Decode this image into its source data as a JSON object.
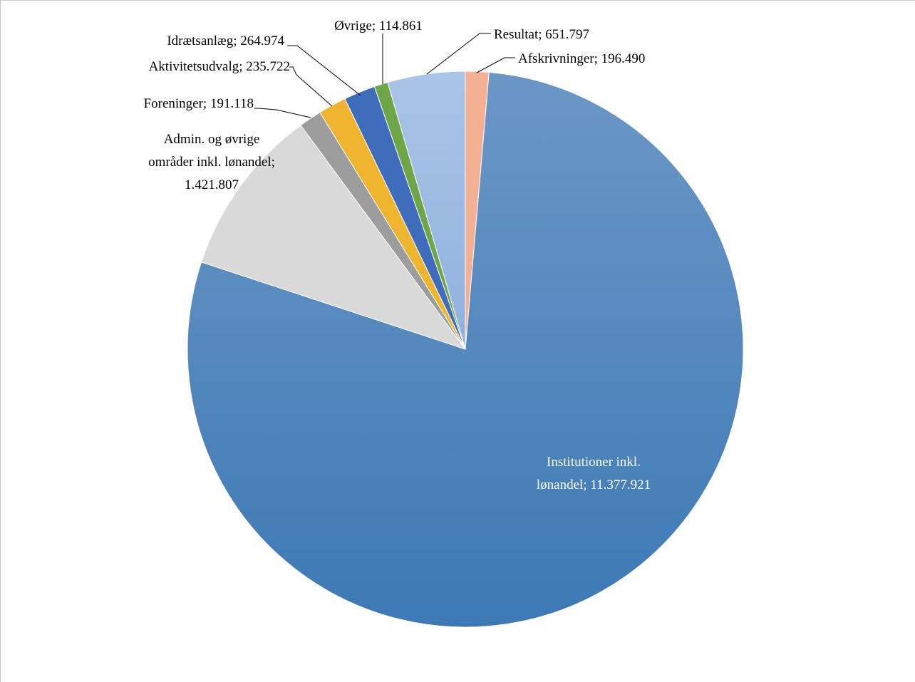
{
  "chart_data": {
    "type": "pie",
    "title": "",
    "start": "12 o'clock",
    "direction": "clockwise",
    "legend": "none",
    "data_labels": "category; value",
    "slices": [
      {
        "name": "Afskrivninger",
        "label": "Afskrivninger; 196.490",
        "value": 196490,
        "color": "#f4b093"
      },
      {
        "name": "Institutioner inkl. lønandel",
        "label_lines": [
          "Institutioner inkl.",
          "lønandel; 11.377.921"
        ],
        "value": 11377921,
        "color": "#4a86c4",
        "color_light": "#6b97c6",
        "color_dark": "#3d79b5"
      },
      {
        "name": "Admin. og øvrige områder inkl. lønandel",
        "label_lines": [
          "Admin. og øvrige",
          "områder inkl. lønandel;",
          "1.421.807"
        ],
        "value": 1421807,
        "color": "#d9d9d9"
      },
      {
        "name": "Foreninger",
        "label": "Foreninger; 191.118",
        "value": 191118,
        "color": "#9d9d9d"
      },
      {
        "name": "Aktivitetsudvalg",
        "label": "Aktivitetsudvalg; 235.722",
        "value": 235722,
        "color": "#f0b52e"
      },
      {
        "name": "Idrætsanlæg",
        "label": "Idrætsanlæg; 264.974",
        "value": 264974,
        "color": "#3f6dbb"
      },
      {
        "name": "Øvrige",
        "label": "Øvrige; 114.861",
        "value": 114861,
        "color": "#6ea647"
      },
      {
        "name": "Resultat",
        "label": "Resultat; 651.797",
        "value": 651797,
        "color": "#9dbbe3"
      }
    ]
  }
}
